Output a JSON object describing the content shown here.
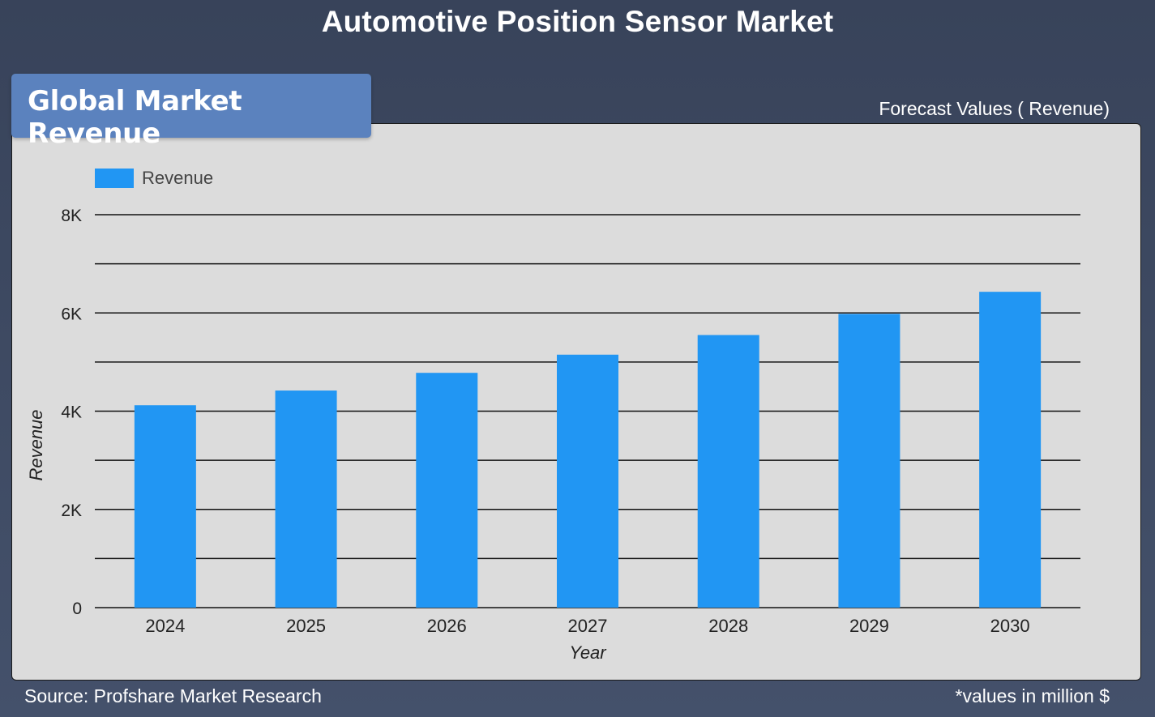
{
  "header": {
    "title": "Automotive Position Sensor Market",
    "section_label": "Global Market Revenue",
    "forecast_label": "Forecast Values ( Revenue)"
  },
  "footer": {
    "source": "Source: Profshare Market Research",
    "units_note": "*values in million $"
  },
  "colors": {
    "bar": "#2196f3",
    "panel": "#dcdcdc",
    "background": "#3c4860",
    "tab": "#5b82be"
  },
  "chart_data": {
    "type": "bar",
    "categories": [
      "2024",
      "2025",
      "2026",
      "2027",
      "2028",
      "2029",
      "2030"
    ],
    "series": [
      {
        "name": "Revenue",
        "values": [
          4120,
          4420,
          4780,
          5150,
          5550,
          5980,
          6430
        ]
      }
    ],
    "xlabel": "Year",
    "ylabel": "Revenue",
    "ylim": [
      0,
      8000
    ],
    "yticks": [
      0,
      2000,
      4000,
      6000,
      8000
    ],
    "ytick_labels": [
      "0",
      "2K",
      "4K",
      "6K",
      "8K"
    ],
    "grid": true,
    "legend": "top-left"
  }
}
